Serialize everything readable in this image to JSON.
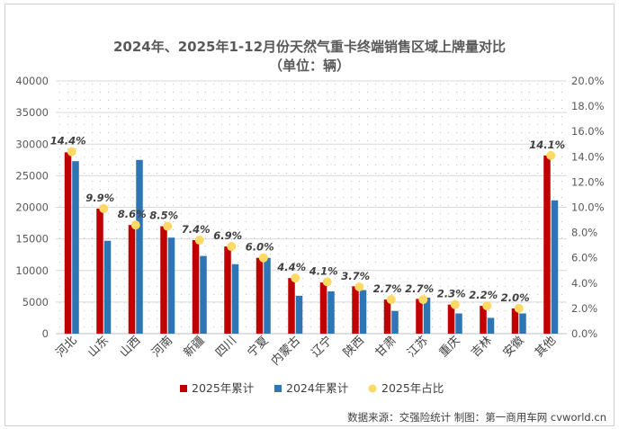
{
  "chart_data": {
    "type": "bar",
    "title": "2024年、2025年1-12月份天然气重卡终端销售区域上牌量对比",
    "subtitle": "（单位：辆）",
    "categories": [
      "河北",
      "山东",
      "山西",
      "河南",
      "新疆",
      "四川",
      "宁夏",
      "内蒙古",
      "辽宁",
      "陕西",
      "甘肃",
      "江苏",
      "重庆",
      "吉林",
      "安徽",
      "其他"
    ],
    "series": [
      {
        "name": "2025年累计",
        "type": "bar",
        "axis": "left",
        "color": "#c00000",
        "values": [
          28700,
          19800,
          17200,
          17000,
          14800,
          13800,
          12000,
          8800,
          8100,
          7500,
          5400,
          5500,
          4600,
          4400,
          4000,
          28200
        ]
      },
      {
        "name": "2024年累计",
        "type": "bar",
        "axis": "left",
        "color": "#2e75b6",
        "values": [
          27300,
          14700,
          27500,
          15200,
          12300,
          11000,
          12000,
          6000,
          6700,
          6900,
          3600,
          5700,
          3200,
          2500,
          3200,
          21100
        ]
      },
      {
        "name": "2025年占比",
        "type": "scatter",
        "axis": "right",
        "color": "#ffd966",
        "values": [
          14.4,
          9.9,
          8.6,
          8.5,
          7.4,
          6.9,
          6.0,
          4.4,
          4.1,
          3.7,
          2.7,
          2.7,
          2.3,
          2.2,
          2.0,
          14.1
        ],
        "labels": [
          "14.4%",
          "9.9%",
          "8.6%",
          "8.5%",
          "7.4%",
          "6.9%",
          "6.0%",
          "4.4%",
          "4.1%",
          "3.7%",
          "2.7%",
          "2.7%",
          "2.3%",
          "2.2%",
          "2.0%",
          "14.1%"
        ]
      }
    ],
    "y_left": {
      "min": 0,
      "max": 40000,
      "step": 5000,
      "ticks": [
        "0",
        "5000",
        "10000",
        "15000",
        "20000",
        "25000",
        "30000",
        "35000",
        "40000"
      ]
    },
    "y_right": {
      "min": 0,
      "max": 20,
      "step": 2,
      "ticks": [
        "0.0%",
        "2.0%",
        "4.0%",
        "6.0%",
        "8.0%",
        "10.0%",
        "12.0%",
        "14.0%",
        "16.0%",
        "18.0%",
        "20.0%"
      ]
    },
    "legend_position": "bottom",
    "grid": true
  },
  "source_text": "数据来源：交强险统计  制图：第一商用车网 cvworld.cn"
}
